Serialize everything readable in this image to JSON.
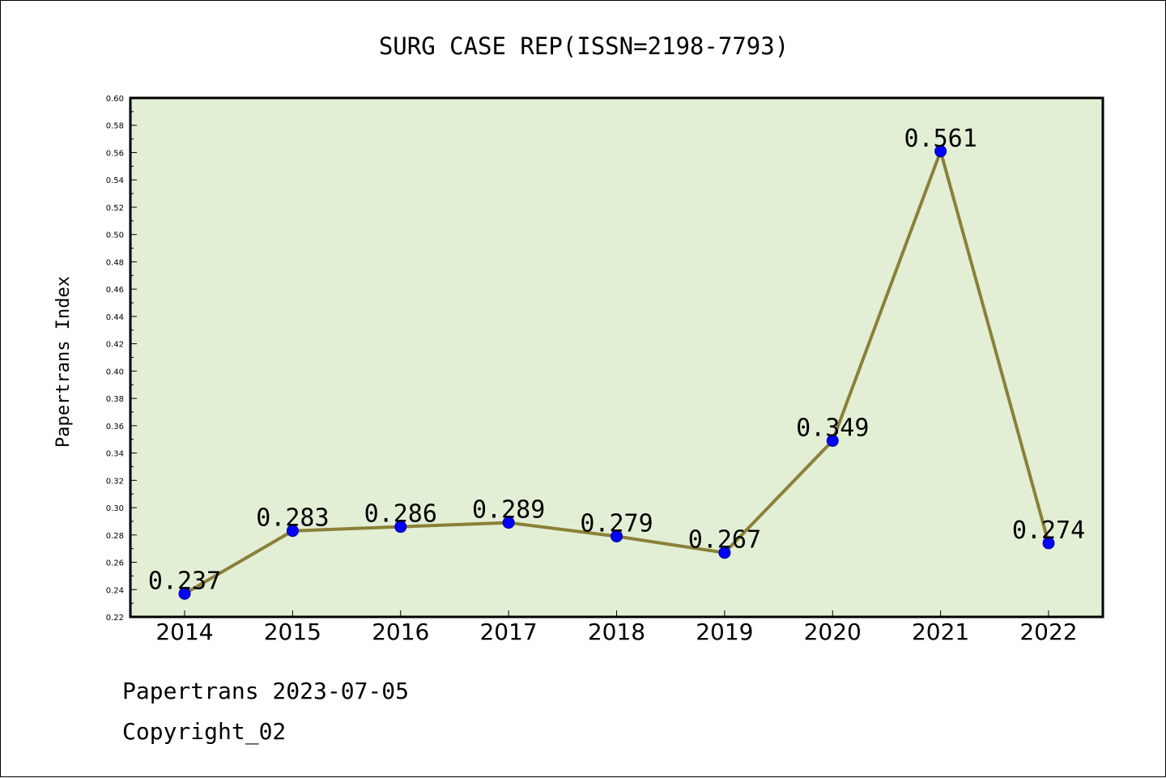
{
  "chart_data": {
    "type": "line",
    "title": "SURG CASE REP(ISSN=2198-7793)",
    "ylabel": "Papertrans Index",
    "xlabel": "",
    "categories": [
      "2014",
      "2015",
      "2016",
      "2017",
      "2018",
      "2019",
      "2020",
      "2021",
      "2022"
    ],
    "values": [
      0.237,
      0.283,
      0.286,
      0.289,
      0.279,
      0.267,
      0.349,
      0.561,
      0.274
    ],
    "data_labels": [
      "0.237",
      "0.283",
      "0.286",
      "0.289",
      "0.279",
      "0.267",
      "0.349",
      "0.561",
      "0.274"
    ],
    "ylim": [
      0.22,
      0.6
    ],
    "yticks": [
      "0.22",
      "0.24",
      "0.26",
      "0.28",
      "0.30",
      "0.32",
      "0.34",
      "0.36",
      "0.38",
      "0.40",
      "0.42",
      "0.44",
      "0.46",
      "0.48",
      "0.50",
      "0.52",
      "0.54",
      "0.56",
      "0.58",
      "0.60"
    ],
    "grid": false,
    "legend": "none",
    "colors": {
      "plot_background": "#e2efd5",
      "line": "#8b8038",
      "marker": "#0000ff"
    }
  },
  "footer": {
    "line1": "Papertrans 2023-07-05",
    "line2": "Copyright_02"
  }
}
